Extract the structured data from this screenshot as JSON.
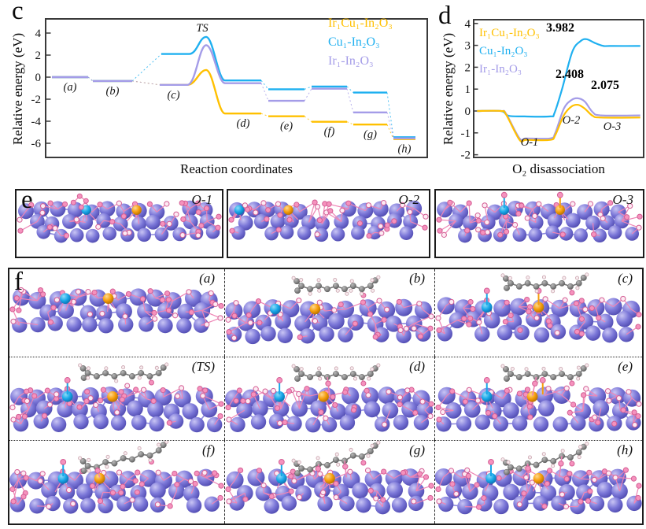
{
  "panels": {
    "c": {
      "letter": "c"
    },
    "d": {
      "letter": "d"
    },
    "e": {
      "letter": "e",
      "cells": [
        {
          "label": "O-1"
        },
        {
          "label": "O-2"
        },
        {
          "label": "O-3"
        }
      ]
    },
    "f": {
      "letter": "f",
      "cells": [
        {
          "label": "(a)"
        },
        {
          "label": "(b)"
        },
        {
          "label": "(c)"
        },
        {
          "label": "(TS)"
        },
        {
          "label": "(d)"
        },
        {
          "label": "(e)"
        },
        {
          "label": "(f)"
        },
        {
          "label": "(g)"
        },
        {
          "label": "(h)"
        }
      ]
    }
  },
  "chart_data": [
    {
      "id": "c",
      "type": "line",
      "title": "",
      "xlabel": "Reaction coordinates",
      "ylabel": "Relative energy (eV)",
      "ylim": [
        -7,
        5
      ],
      "yticks": [
        4,
        2,
        0,
        -2,
        -4,
        -6
      ],
      "grid": false,
      "legend_position": "top-right",
      "categories": [
        "(a)",
        "(b)",
        "(c)",
        "TS",
        "(d)",
        "(e)",
        "(f)",
        "(g)",
        "(h)"
      ],
      "series": [
        {
          "name": "Ir₁Cu₁-In₂O₃",
          "color": "#FFC000",
          "values": [
            0,
            -0.35,
            -0.7,
            0.65,
            -3.3,
            -3.55,
            -4.05,
            -4.3,
            -5.62
          ]
        },
        {
          "name": "Cu₁-In₂O₃",
          "color": "#1FB0F0",
          "values": [
            0,
            -0.35,
            2.1,
            3.65,
            -0.3,
            -1.1,
            -0.85,
            -1.4,
            -5.45
          ]
        },
        {
          "name": "Ir₁-In₂O₃",
          "color": "#A49CE8",
          "values": [
            0,
            -0.35,
            -0.7,
            2.9,
            -0.55,
            -2.15,
            -1.05,
            -3.2,
            -5.55
          ]
        }
      ]
    },
    {
      "id": "d",
      "type": "line",
      "title": "",
      "xlabel": "O₂ disassociation",
      "ylabel": "Relative energy (eV)",
      "ylim": [
        -2,
        4
      ],
      "yticks": [
        4,
        3,
        2,
        1,
        0,
        -1,
        -2
      ],
      "grid": false,
      "legend_position": "top-left",
      "stages": [
        "O-1",
        "O-2",
        "O-3"
      ],
      "annotations": [
        {
          "text": "3.982",
          "series": "Cu₁-In₂O₃"
        },
        {
          "text": "2.408",
          "series": "Ir₁-In₂O₃"
        },
        {
          "text": "2.075",
          "series": "Ir₁Cu₁-In₂O₃"
        }
      ],
      "series": [
        {
          "name": "Ir₁Cu₁-In₂O₃",
          "color": "#FFC000",
          "barrier_eV": "2.075",
          "profile": [
            [
              0.02,
              0
            ],
            [
              0.16,
              0
            ],
            [
              0.19,
              -0.15
            ],
            [
              0.27,
              -1.32
            ],
            [
              0.31,
              -1.32
            ],
            [
              0.45,
              -1.32
            ],
            [
              0.48,
              -1.1
            ],
            [
              0.53,
              -0.2
            ],
            [
              0.575,
              0.2
            ],
            [
              0.615,
              0.28
            ],
            [
              0.655,
              0.1
            ],
            [
              0.7,
              -0.22
            ],
            [
              0.75,
              -0.3
            ],
            [
              0.98,
              -0.3
            ]
          ]
        },
        {
          "name": "Cu₁-In₂O₃",
          "color": "#1FB0F0",
          "barrier_eV": "3.982",
          "profile": [
            [
              0.02,
              0
            ],
            [
              0.16,
              0
            ],
            [
              0.205,
              -0.22
            ],
            [
              0.3,
              -0.25
            ],
            [
              0.45,
              -0.25
            ],
            [
              0.475,
              -0.1
            ],
            [
              0.52,
              1.0
            ],
            [
              0.58,
              2.7
            ],
            [
              0.63,
              3.2
            ],
            [
              0.665,
              3.28
            ],
            [
              0.71,
              3.12
            ],
            [
              0.76,
              2.98
            ],
            [
              0.8,
              2.97
            ],
            [
              0.98,
              2.97
            ]
          ]
        },
        {
          "name": "Ir₁-In₂O₃",
          "color": "#A49CE8",
          "barrier_eV": "2.408",
          "profile": [
            [
              0.02,
              0
            ],
            [
              0.16,
              0
            ],
            [
              0.19,
              -0.12
            ],
            [
              0.27,
              -1.25
            ],
            [
              0.31,
              -1.25
            ],
            [
              0.45,
              -1.25
            ],
            [
              0.48,
              -1.0
            ],
            [
              0.53,
              0.1
            ],
            [
              0.575,
              0.5
            ],
            [
              0.615,
              0.58
            ],
            [
              0.655,
              0.42
            ],
            [
              0.7,
              -0.05
            ],
            [
              0.75,
              -0.2
            ],
            [
              0.98,
              -0.2
            ]
          ]
        }
      ]
    }
  ],
  "colors": {
    "axis": "#3a3a3a",
    "series_IrCu": "#FFC000",
    "series_Cu": "#1FB0F0",
    "series_Ir": "#A49CE8",
    "atom_In": "#7B77D8",
    "atom_O": "#F592BD",
    "atom_Cu": "#18A7E8",
    "atom_Ir": "#F59D0C",
    "atom_C": "#8A8A8A",
    "atom_H": "#F7EBEE"
  }
}
